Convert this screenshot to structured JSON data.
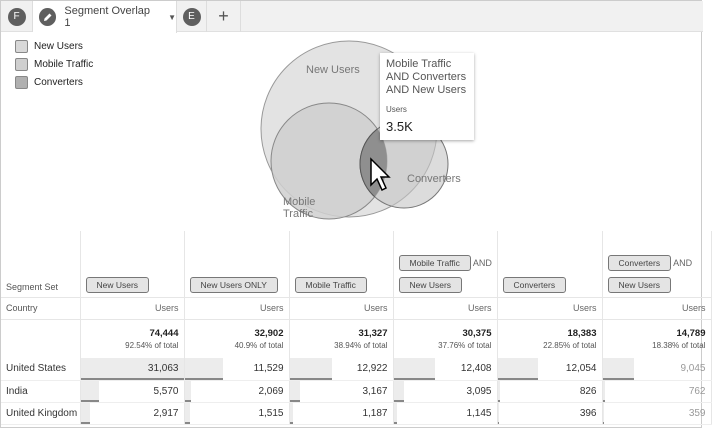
{
  "tabs": {
    "user_initial": "F",
    "title": "Segment Overlap 1",
    "second_initial": "E",
    "add_label": "+"
  },
  "legend": [
    {
      "label": "New Users",
      "color": "#d8d8d8"
    },
    {
      "label": "Mobile Traffic",
      "color": "#cfcfcf"
    },
    {
      "label": "Converters",
      "color": "#b0b0b0"
    }
  ],
  "venn": {
    "labels": {
      "new_users": "New Users",
      "mobile": "Mobile Traffic",
      "converters": "Converters"
    },
    "tooltip": {
      "title_lines": [
        "Mobile Traffic",
        "AND Converters",
        "AND New Users"
      ],
      "metric": "Users",
      "value": "3.5K"
    }
  },
  "table": {
    "segment_set_label": "Segment Set",
    "dimension_label": "Country",
    "and_label": "AND",
    "columns": [
      {
        "segments": [
          "New Users"
        ],
        "metric": "Users",
        "total": "74,444",
        "pct": "92.54% of total",
        "values": [
          "31,063",
          "5,570",
          "2,917"
        ],
        "raw": [
          31063,
          5570,
          2917
        ]
      },
      {
        "segments": [
          "New Users ONLY"
        ],
        "metric": "Users",
        "total": "32,902",
        "pct": "40.9% of total",
        "values": [
          "11,529",
          "2,069",
          "1,515"
        ],
        "raw": [
          11529,
          2069,
          1515
        ]
      },
      {
        "segments": [
          "Mobile Traffic"
        ],
        "metric": "Users",
        "total": "31,327",
        "pct": "38.94% of total",
        "values": [
          "12,922",
          "3,167",
          "1,187"
        ],
        "raw": [
          12922,
          3167,
          1187
        ]
      },
      {
        "segments": [
          "Mobile Traffic",
          "New Users"
        ],
        "metric": "Users",
        "total": "30,375",
        "pct": "37.76% of total",
        "values": [
          "12,408",
          "3,095",
          "1,145"
        ],
        "raw": [
          12408,
          3095,
          1145
        ]
      },
      {
        "segments": [
          "Converters"
        ],
        "metric": "Users",
        "total": "18,383",
        "pct": "22.85% of total",
        "values": [
          "12,054",
          "826",
          "396"
        ],
        "raw": [
          12054,
          826,
          396
        ]
      },
      {
        "segments": [
          "Converters",
          "New Users"
        ],
        "metric": "Users",
        "total": "14,789",
        "pct": "18.38% of total",
        "values": [
          "9,045",
          "762",
          "359"
        ],
        "raw": [
          9045,
          762,
          359
        ]
      }
    ],
    "rows": [
      "United States",
      "India",
      "United Kingdom"
    ]
  }
}
